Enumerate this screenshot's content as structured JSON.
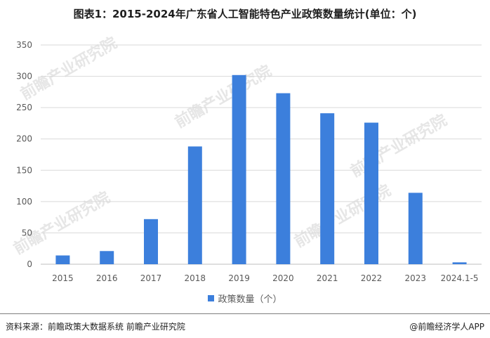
{
  "title": "图表1：2015-2024年广东省人工智能特色产业政策数量统计(单位：个)",
  "watermark": "前瞻产业研究院",
  "chart_data": {
    "type": "bar",
    "categories": [
      "2015",
      "2016",
      "2017",
      "2018",
      "2019",
      "2020",
      "2021",
      "2022",
      "2023",
      "2024.1-5"
    ],
    "series": [
      {
        "name": "政策数量（个）",
        "values": [
          14,
          21,
          72,
          188,
          302,
          273,
          241,
          226,
          114,
          3
        ]
      }
    ],
    "ylim": [
      0,
      350
    ],
    "yticks": [
      0,
      50,
      100,
      150,
      200,
      250,
      300,
      350
    ],
    "grid": true,
    "legend": "bottom",
    "colors": {
      "bar": "#3c7fdc",
      "grid": "#d9d9d9",
      "axis": "#bfbfbf"
    }
  },
  "footer": {
    "source": "资料来源：前瞻政策大数据系统 前瞻产业研究院",
    "brand": "@前瞻经济学人APP"
  }
}
